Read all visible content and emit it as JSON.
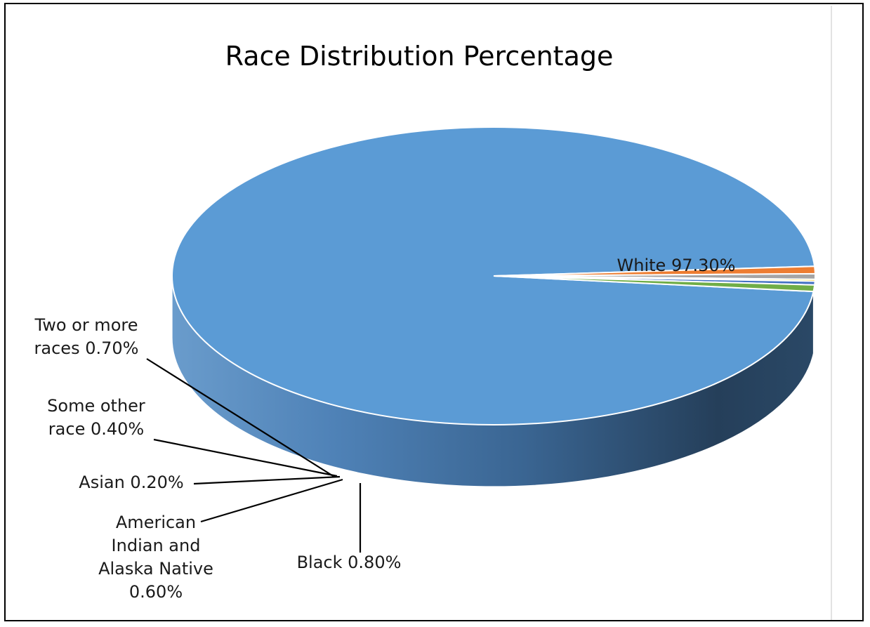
{
  "chart_data": {
    "type": "pie",
    "style": "3d",
    "title": "Race Distribution Percentage",
    "categories": [
      "White",
      "Black",
      "American Indian and Alaska Native",
      "Asian",
      "Some other race",
      "Two or more races"
    ],
    "values": [
      97.3,
      0.8,
      0.6,
      0.2,
      0.4,
      0.7
    ],
    "unit": "%",
    "colors": [
      "#5b9bd5",
      "#ed7d31",
      "#a5a5a5",
      "#ffc000",
      "#4472c4",
      "#70ad47"
    ],
    "data_labels": [
      [
        "White 97.30%"
      ],
      [
        "Black 0.80%"
      ],
      [
        "American",
        "Indian and",
        "Alaska Native",
        "0.60%"
      ],
      [
        "Asian 0.20%"
      ],
      [
        "Some other",
        "race 0.40%"
      ],
      [
        "Two or more",
        "races 0.70%"
      ]
    ],
    "legend": "none"
  }
}
